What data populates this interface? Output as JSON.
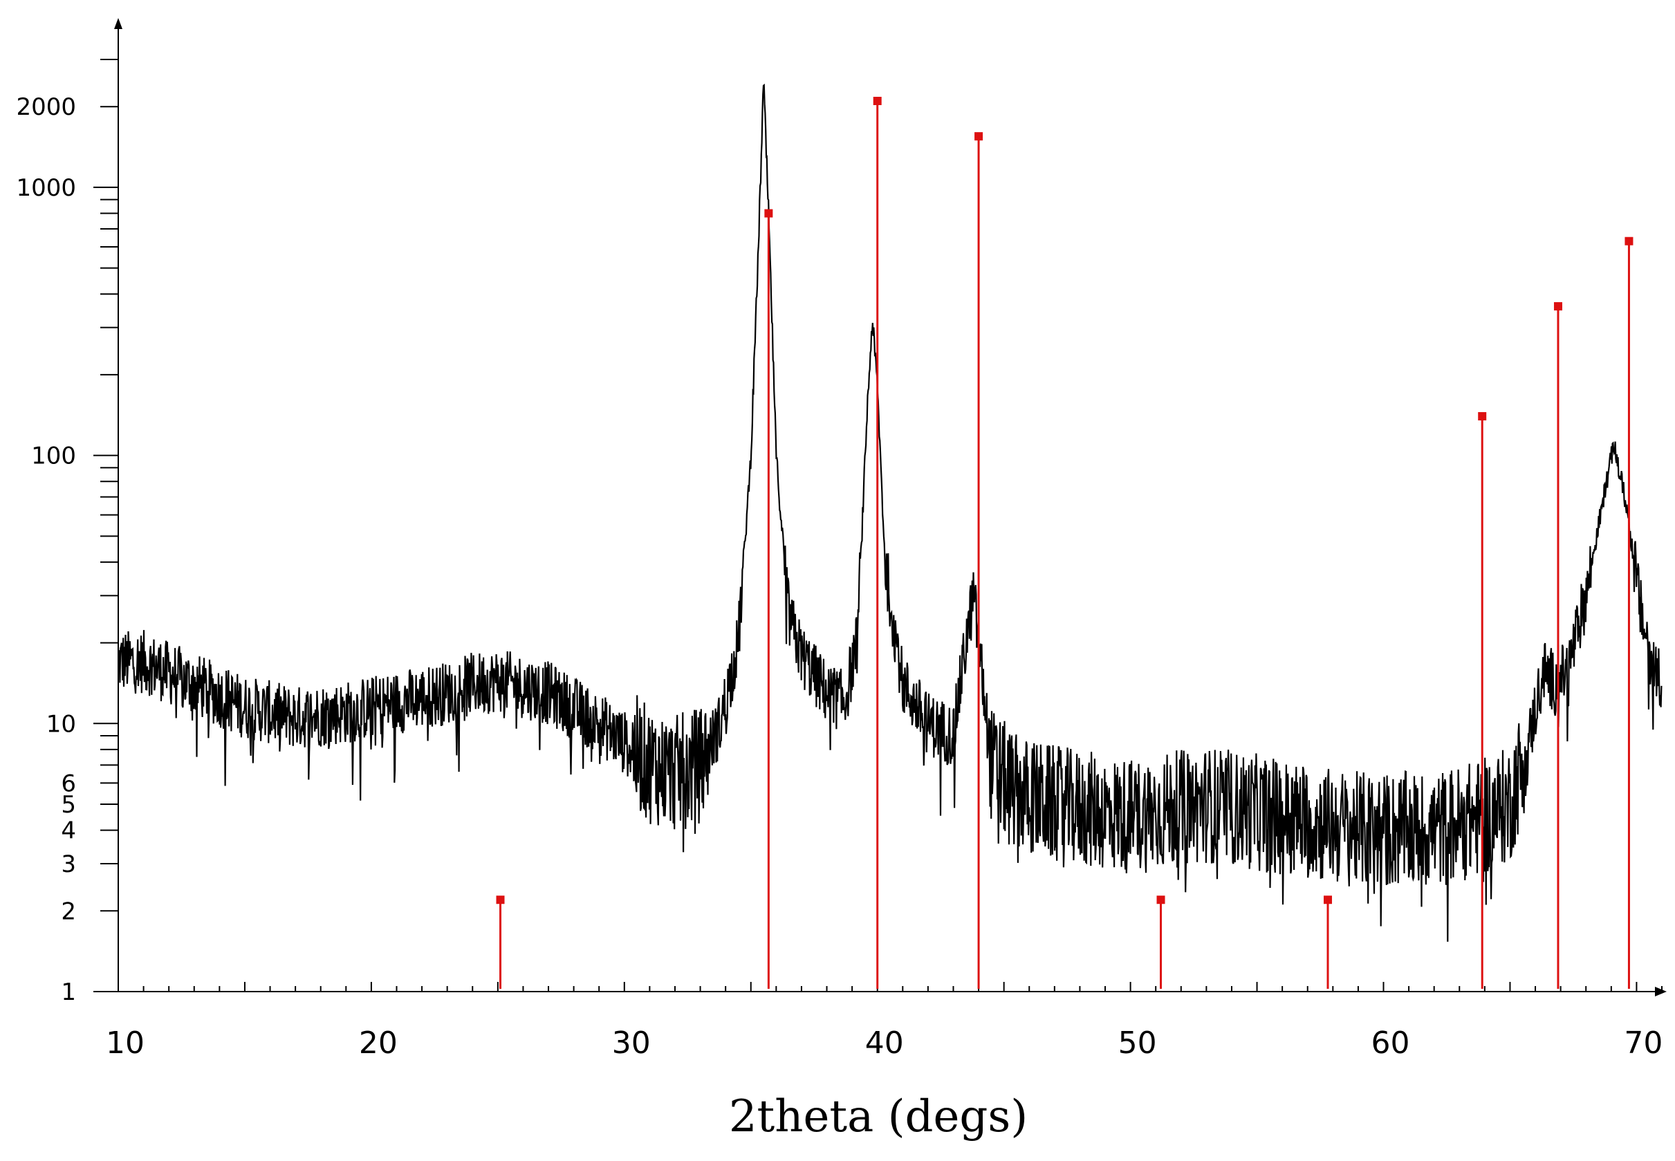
{
  "chart_data": {
    "type": "line",
    "xlabel": "2theta (degs)",
    "ylabel": "",
    "xlim": [
      10,
      71
    ],
    "ylim": [
      1,
      3500
    ],
    "yscale": "log",
    "grid": false,
    "x_ticks": [
      "10",
      "20",
      "30",
      "40",
      "50",
      "60",
      "70"
    ],
    "y_ticks": [
      "1",
      "2",
      "3",
      "4",
      "5",
      "6",
      "10",
      "100",
      "1000",
      "2000"
    ],
    "colors": {
      "pattern": "#000000",
      "reference": "#dd1111"
    },
    "series": [
      {
        "type": "line",
        "noisy": true,
        "x": [
          10,
          11,
          13,
          15,
          17,
          19,
          21,
          23,
          24,
          25,
          27,
          29,
          30,
          31,
          32,
          33,
          33.8,
          34.5,
          35,
          35.3,
          35.5,
          35.7,
          36,
          36.5,
          37,
          38,
          38.7,
          39.2,
          39.6,
          39.8,
          40,
          40.3,
          41,
          42,
          43,
          43.5,
          43.8,
          44,
          44.5,
          45.5,
          47,
          50,
          53,
          56,
          59,
          62,
          64,
          65,
          65.8,
          66.3,
          66.8,
          67.3,
          68,
          68.7,
          69.1,
          69.6,
          70.2,
          70.7,
          71
        ],
        "values": [
          17,
          17,
          14,
          11.5,
          10.5,
          11,
          12,
          13,
          14,
          14.5,
          13,
          10,
          8.5,
          7,
          6.5,
          7,
          10,
          20,
          100,
          600,
          2500,
          800,
          100,
          25,
          18,
          13,
          12,
          20,
          150,
          320,
          180,
          40,
          14,
          10,
          9,
          20,
          30,
          20,
          7,
          5.5,
          5,
          4.5,
          5,
          4.5,
          4,
          4,
          4.5,
          5,
          9,
          16,
          14,
          16,
          30,
          70,
          110,
          65,
          25,
          16,
          15
        ]
      },
      {
        "name": "",
        "type": "stem",
        "x": [
          25.1,
          35.7,
          40,
          44,
          51.2,
          57.8,
          63.9,
          66.9,
          69.7
        ],
        "values": [
          2.2,
          800,
          2100,
          1550,
          2.2,
          2.2,
          140,
          360,
          630
        ]
      }
    ]
  }
}
